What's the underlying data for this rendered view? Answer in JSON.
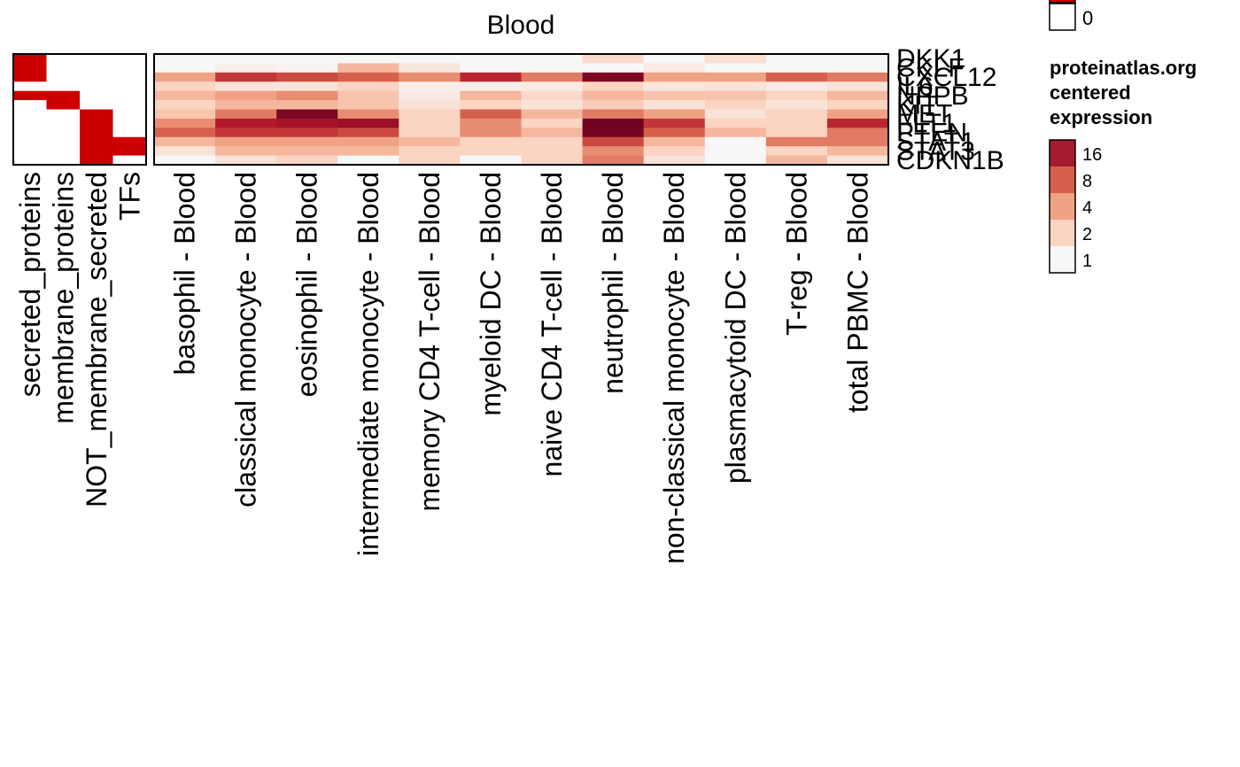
{
  "chart_data": {
    "type": "heatmap",
    "title": "Blood",
    "columns": [
      "basophil - Blood",
      "classical monocyte - Blood",
      "eosinophil - Blood",
      "intermediate monocyte - Blood",
      "memory CD4 T-cell - Blood",
      "myeloid DC - Blood",
      "naive CD4 T-cell - Blood",
      "neutrophil - Blood",
      "non-classical monocyte - Blood",
      "plasmacytoid DC - Blood",
      "T-reg - Blood",
      "total PBMC - Blood"
    ],
    "rows": [
      "DKK1",
      "CKLF",
      "CXCL12",
      "IL6",
      "NPPB",
      "KIT",
      "MET",
      "FLT1",
      "PTEN",
      "STAT1",
      "STAT3",
      "CDKN1B"
    ],
    "row_labels": [
      "DKK1",
      "CKLF",
      "CXCL12",
      "IL6",
      "NPPB",
      "KIT",
      "MET",
      "FLT1",
      "PTEN",
      "STAT1",
      "STAT3",
      "CDKN1B"
    ],
    "values": [
      [
        1,
        1,
        1,
        1,
        1,
        1,
        1,
        1.8,
        1,
        1.6,
        1,
        1
      ],
      [
        1,
        1.2,
        1.1,
        3,
        1.4,
        1,
        1,
        1,
        1.3,
        1,
        1,
        1
      ],
      [
        4,
        12,
        10,
        8,
        5,
        14,
        6,
        26,
        4,
        4,
        8,
        6
      ],
      [
        2,
        1.5,
        1.5,
        2,
        1.2,
        1.2,
        1.3,
        2,
        1.4,
        1.5,
        1.3,
        1.5
      ],
      [
        3,
        4,
        5,
        2.5,
        1.3,
        3,
        1.8,
        3,
        2.5,
        2.5,
        2,
        3
      ],
      [
        2,
        3,
        3,
        2.5,
        1.5,
        2,
        1.5,
        2.2,
        1.5,
        2,
        1.5,
        2
      ],
      [
        2.5,
        6,
        26,
        5,
        2,
        8,
        3,
        6,
        4,
        1.5,
        2,
        4
      ],
      [
        5,
        16,
        18,
        20,
        2,
        5,
        2,
        30,
        12,
        2,
        2,
        14
      ],
      [
        8,
        12,
        12,
        10,
        2,
        5,
        3,
        28,
        8,
        3,
        2,
        6
      ],
      [
        3,
        4,
        4,
        4,
        3,
        2,
        2,
        10,
        3,
        1,
        6,
        6
      ],
      [
        1.5,
        3,
        3,
        3,
        2,
        2,
        2,
        5,
        2,
        1,
        2,
        3
      ],
      [
        1,
        1.5,
        2,
        1,
        2,
        1,
        2,
        6,
        1.5,
        1,
        3,
        1.5
      ]
    ],
    "annotation": {
      "categories": [
        "secreted_proteins",
        "membrane_proteins",
        "NOT_membrane_secreted",
        "TFs"
      ],
      "matrix": [
        [
          1,
          0,
          0,
          0
        ],
        [
          1,
          0,
          0,
          0
        ],
        [
          1,
          0,
          0,
          0
        ],
        [
          0,
          0,
          0,
          0
        ],
        [
          1,
          1,
          0,
          0
        ],
        [
          0,
          1,
          0,
          0
        ],
        [
          0,
          0,
          1,
          0
        ],
        [
          0,
          0,
          1,
          0
        ],
        [
          0,
          0,
          1,
          0
        ],
        [
          0,
          0,
          1,
          1
        ],
        [
          0,
          0,
          1,
          1
        ],
        [
          0,
          0,
          1,
          0
        ]
      ],
      "legend_visible_value": "0"
    },
    "color_scale": {
      "breaks": [
        1,
        2,
        4,
        8,
        16,
        32
      ],
      "colors": [
        "#f7f7f7",
        "#fbd4c2",
        "#f0a284",
        "#d6604d",
        "#b2182b",
        "#67001f"
      ]
    },
    "annotation_color": "#cc0000",
    "legend": {
      "title": [
        "proteinatlas.org",
        "centered",
        "expression"
      ],
      "labels": [
        "16",
        "8",
        "4",
        "2",
        "1"
      ],
      "colors": [
        "#a51c30",
        "#d6604d",
        "#f0a284",
        "#fbd4c2",
        "#f7f7f7"
      ],
      "placement": "right"
    }
  }
}
